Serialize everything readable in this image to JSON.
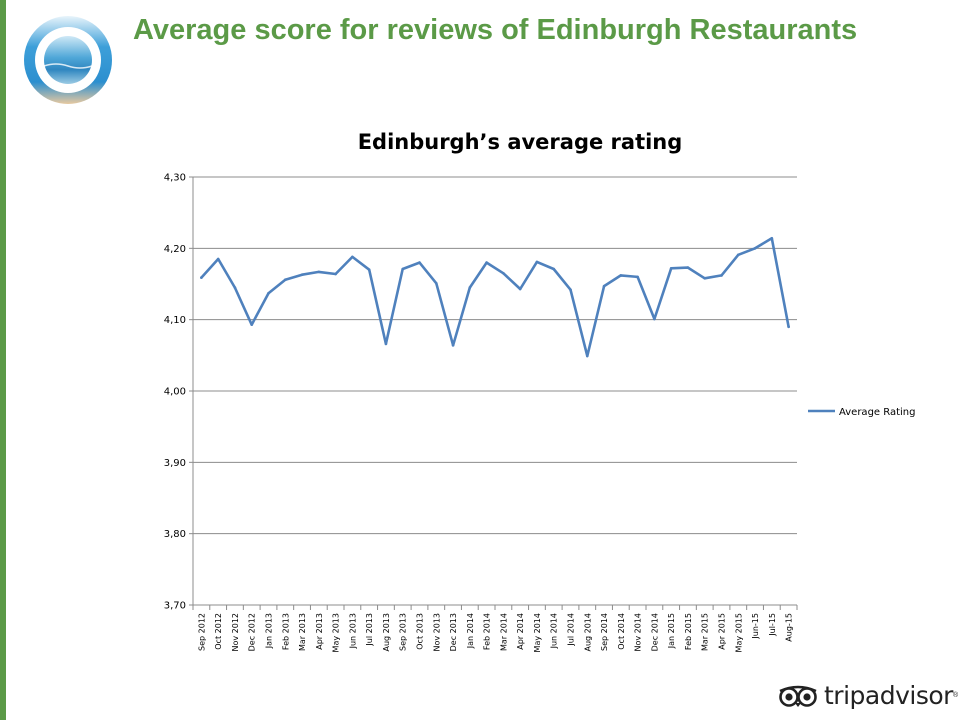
{
  "slide": {
    "title": "Average score for reviews of Edinburgh Restaurants",
    "brand": "tripadvisor",
    "brand_mark": "®",
    "accent_color": "#5b9a47"
  },
  "icons": {
    "logo": "blue-ring-beach-logo",
    "brand": "owl-eyes-icon"
  },
  "chart_data": {
    "type": "line",
    "title": "Edinburgh’s average rating",
    "xlabel": "",
    "ylabel": "",
    "ylim": [
      3.7,
      4.3
    ],
    "yticks": [
      3.7,
      3.8,
      3.9,
      4.0,
      4.1,
      4.2,
      4.3
    ],
    "ytick_labels": [
      "3,70",
      "3,80",
      "3,90",
      "4,00",
      "4,10",
      "4,20",
      "4,30"
    ],
    "grid": true,
    "legend_position": "right",
    "categories": [
      "Sep 2012",
      "Oct 2012",
      "Nov 2012",
      "Dec 2012",
      "Jan 2013",
      "Feb 2013",
      "Mar 2013",
      "Apr 2013",
      "May 2013",
      "Jun 2013",
      "Jul 2013",
      "Aug 2013",
      "Sep 2013",
      "Oct 2013",
      "Nov 2013",
      "Dec 2013",
      "Jan 2014",
      "Feb 2014",
      "Mar 2014",
      "Apr 2014",
      "May 2014",
      "Jun 2014",
      "Jul 2014",
      "Aug 2014",
      "Sep 2014",
      "Oct 2014",
      "Nov 2014",
      "Dec 2014",
      "Jan 2015",
      "Feb 2015",
      "Mar 2015",
      "Apr 2015",
      "May 2015",
      "Jun-15",
      "Jul-15",
      "Aug-15"
    ],
    "series": [
      {
        "name": "Average Rating",
        "color": "#4f81bd",
        "values": [
          4.159,
          4.185,
          4.145,
          4.093,
          4.137,
          4.156,
          4.163,
          4.167,
          4.164,
          4.188,
          4.17,
          4.066,
          4.171,
          4.18,
          4.151,
          4.064,
          4.145,
          4.18,
          4.165,
          4.143,
          4.181,
          4.171,
          4.142,
          4.049,
          4.147,
          4.162,
          4.16,
          4.101,
          4.172,
          4.173,
          4.158,
          4.162,
          4.191,
          4.2,
          4.214,
          4.09
        ]
      }
    ]
  }
}
